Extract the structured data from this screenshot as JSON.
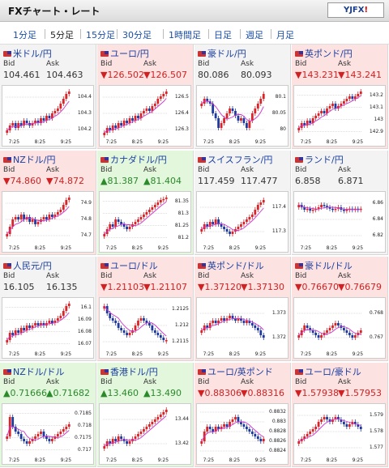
{
  "header": {
    "title": "FXチャート・レート",
    "logo_main": "YJFX",
    "logo_accent": "!"
  },
  "tabs": [
    {
      "label": "1分足",
      "selected": false
    },
    {
      "label": "5分足",
      "selected": true
    },
    {
      "label": "15分足",
      "selected": false
    },
    {
      "label": "30分足",
      "selected": false
    },
    {
      "label": "1時間足",
      "selected": false
    },
    {
      "label": "日足",
      "selected": false
    },
    {
      "label": "週足",
      "selected": false
    },
    {
      "label": "月足",
      "selected": false
    }
  ],
  "labels": {
    "bid": "Bid",
    "ask": "Ask"
  },
  "x_ticks": [
    "7:25",
    "8:25",
    "9:25"
  ],
  "colors": {
    "up_bg": "#e2f7dc",
    "down_bg": "#fde2e2",
    "flat_bg": "#f3f3f3",
    "up_text": "#2b8a2b",
    "down_text": "#d02222",
    "candle_up": "#d8252a",
    "candle_down": "#1f3a9e",
    "ma": "#cc33cc"
  },
  "pairs": [
    {
      "name": "米ドル/円",
      "dir": "flat",
      "bid": "104.461",
      "ask": "104.463",
      "y_ticks": [
        "104.4",
        "104.3",
        "104.2"
      ],
      "trend": [
        0.15,
        0.25,
        0.3,
        0.2,
        0.3,
        0.25,
        0.35,
        0.3,
        0.25,
        0.3,
        0.35,
        0.3,
        0.4,
        0.35,
        0.45,
        0.4,
        0.5,
        0.55,
        0.6,
        0.7,
        0.8,
        0.9,
        0.95
      ]
    },
    {
      "name": "ユーロ/円",
      "dir": "down",
      "bid": "▼126.502",
      "ask": "▼126.507",
      "y_ticks": [
        "126.5",
        "126.4",
        "126.3"
      ],
      "trend": [
        0.1,
        0.2,
        0.15,
        0.25,
        0.2,
        0.3,
        0.25,
        0.35,
        0.3,
        0.4,
        0.35,
        0.45,
        0.4,
        0.5,
        0.55,
        0.6,
        0.55,
        0.65,
        0.7,
        0.8,
        0.85,
        0.9,
        0.95
      ]
    },
    {
      "name": "豪ドル/円",
      "dir": "flat",
      "bid": "80.086",
      "ask": "80.093",
      "y_ticks": [
        "80.1",
        "80.05",
        "80"
      ],
      "trend": [
        0.7,
        0.8,
        0.75,
        0.7,
        0.5,
        0.4,
        0.2,
        0.3,
        0.4,
        0.5,
        0.6,
        0.55,
        0.45,
        0.35,
        0.4,
        0.3,
        0.2,
        0.35,
        0.5,
        0.6,
        0.7,
        0.8,
        0.9
      ]
    },
    {
      "name": "英ポンド/円",
      "dir": "down",
      "bid": "▼143.231",
      "ask": "▼143.241",
      "y_ticks": [
        "143.2",
        "143.1",
        "143",
        "142.9"
      ],
      "trend": [
        0.2,
        0.3,
        0.25,
        0.35,
        0.3,
        0.4,
        0.45,
        0.5,
        0.55,
        0.5,
        0.6,
        0.65,
        0.7,
        0.6,
        0.65,
        0.7,
        0.75,
        0.8,
        0.85,
        0.8,
        0.85,
        0.9,
        0.95
      ]
    },
    {
      "name": "NZドル/円",
      "dir": "down",
      "bid": "▼74.860",
      "ask": "▼74.872",
      "y_ticks": [
        "74.9",
        "74.8",
        "74.7"
      ],
      "trend": [
        0.2,
        0.35,
        0.5,
        0.55,
        0.5,
        0.6,
        0.5,
        0.55,
        0.45,
        0.5,
        0.4,
        0.45,
        0.5,
        0.55,
        0.5,
        0.6,
        0.55,
        0.6,
        0.65,
        0.7,
        0.8,
        0.9,
        0.95
      ]
    },
    {
      "name": "カナダドル/円",
      "dir": "up",
      "bid": "▲81.387",
      "ask": "▲81.404",
      "y_ticks": [
        "81.35",
        "81.3",
        "81.25",
        "81.2"
      ],
      "trend": [
        0.2,
        0.3,
        0.4,
        0.35,
        0.5,
        0.45,
        0.4,
        0.35,
        0.3,
        0.35,
        0.4,
        0.45,
        0.5,
        0.55,
        0.6,
        0.65,
        0.7,
        0.75,
        0.8,
        0.85,
        0.9,
        0.92,
        0.95
      ]
    },
    {
      "name": "スイスフラン/円",
      "dir": "flat",
      "bid": "117.459",
      "ask": "117.477",
      "y_ticks": [
        "117.4",
        "117.3"
      ],
      "trend": [
        0.3,
        0.4,
        0.35,
        0.45,
        0.4,
        0.5,
        0.4,
        0.35,
        0.3,
        0.25,
        0.2,
        0.25,
        0.3,
        0.35,
        0.4,
        0.45,
        0.5,
        0.55,
        0.6,
        0.7,
        0.8,
        0.85,
        0.9
      ]
    },
    {
      "name": "ランド/円",
      "dir": "flat",
      "bid": "6.858",
      "ask": "6.871",
      "y_ticks": [
        "6.86",
        "6.84",
        "6.82"
      ],
      "trend": [
        0.8,
        0.75,
        0.7,
        0.72,
        0.68,
        0.7,
        0.72,
        0.75,
        0.8,
        0.78,
        0.75,
        0.72,
        0.7,
        0.72,
        0.75,
        0.7,
        0.68,
        0.7,
        0.72,
        0.7,
        0.72,
        0.7,
        0.72
      ]
    },
    {
      "name": "人民元/円",
      "dir": "flat",
      "bid": "16.105",
      "ask": "16.135",
      "y_ticks": [
        "16.1",
        "16.09",
        "16.08",
        "16.07"
      ],
      "trend": [
        0.2,
        0.35,
        0.3,
        0.4,
        0.35,
        0.45,
        0.4,
        0.5,
        0.45,
        0.5,
        0.55,
        0.5,
        0.55,
        0.5,
        0.55,
        0.6,
        0.55,
        0.6,
        0.65,
        0.7,
        0.8,
        0.9,
        0.95
      ]
    },
    {
      "name": "ユーロ/ドル",
      "dir": "down",
      "bid": "▼1.21103",
      "ask": "▼1.21107",
      "y_ticks": [
        "1.2125",
        "1.212",
        "1.2115"
      ],
      "trend": [
        0.9,
        0.75,
        0.65,
        0.6,
        0.55,
        0.45,
        0.4,
        0.35,
        0.3,
        0.35,
        0.4,
        0.5,
        0.6,
        0.65,
        0.6,
        0.55,
        0.5,
        0.4,
        0.35,
        0.3,
        0.25,
        0.2,
        0.2
      ]
    },
    {
      "name": "英ポンド/ドル",
      "dir": "down",
      "bid": "▼1.37120",
      "ask": "▼1.37130",
      "y_ticks": [
        "1.373",
        "1.372"
      ],
      "trend": [
        0.4,
        0.5,
        0.45,
        0.55,
        0.6,
        0.55,
        0.6,
        0.65,
        0.6,
        0.65,
        0.7,
        0.65,
        0.6,
        0.65,
        0.6,
        0.55,
        0.6,
        0.55,
        0.5,
        0.45,
        0.4,
        0.3,
        0.25
      ]
    },
    {
      "name": "豪ドル/ドル",
      "dir": "down",
      "bid": "▼0.76670",
      "ask": "▼0.76679",
      "y_ticks": [
        "0.768",
        "0.767"
      ],
      "trend": [
        0.3,
        0.4,
        0.5,
        0.45,
        0.4,
        0.35,
        0.3,
        0.25,
        0.3,
        0.35,
        0.4,
        0.45,
        0.5,
        0.55,
        0.5,
        0.45,
        0.4,
        0.35,
        0.3,
        0.25,
        0.3,
        0.35,
        0.4
      ]
    },
    {
      "name": "NZドル/ドル",
      "dir": "up",
      "bid": "▲0.71666",
      "ask": "▲0.71682",
      "y_ticks": [
        "0.7185",
        "0.718",
        "0.7175",
        "0.717"
      ],
      "trend": [
        0.4,
        0.8,
        0.6,
        0.5,
        0.45,
        0.35,
        0.3,
        0.25,
        0.3,
        0.35,
        0.4,
        0.45,
        0.5,
        0.4,
        0.35,
        0.3,
        0.35,
        0.4,
        0.45,
        0.5,
        0.55,
        0.6,
        0.65
      ]
    },
    {
      "name": "香港ドル/円",
      "dir": "up",
      "bid": "▲13.460",
      "ask": "▲13.490",
      "y_ticks": [
        "13.44",
        "13.42"
      ],
      "trend": [
        0.2,
        0.3,
        0.25,
        0.35,
        0.3,
        0.4,
        0.35,
        0.3,
        0.25,
        0.3,
        0.35,
        0.4,
        0.45,
        0.5,
        0.55,
        0.6,
        0.65,
        0.7,
        0.75,
        0.8,
        0.85,
        0.9,
        0.95
      ]
    },
    {
      "name": "ユーロ/英ポンド",
      "dir": "down",
      "bid": "▼0.88306",
      "ask": "▼0.88316",
      "y_ticks": [
        "0.8832",
        "0.883",
        "0.8828",
        "0.8826",
        "0.8824"
      ],
      "trend": [
        0.3,
        0.5,
        0.6,
        0.55,
        0.5,
        0.6,
        0.55,
        0.6,
        0.65,
        0.6,
        0.7,
        0.75,
        0.8,
        0.7,
        0.65,
        0.6,
        0.55,
        0.5,
        0.45,
        0.4,
        0.35,
        0.3,
        0.35
      ]
    },
    {
      "name": "ユーロ/豪ドル",
      "dir": "down",
      "bid": "▼1.57938",
      "ask": "▼1.57953",
      "y_ticks": [
        "1.579",
        "1.578",
        "1.577"
      ],
      "trend": [
        0.3,
        0.35,
        0.4,
        0.45,
        0.5,
        0.55,
        0.6,
        0.7,
        0.75,
        0.8,
        0.75,
        0.7,
        0.75,
        0.8,
        0.75,
        0.7,
        0.65,
        0.6,
        0.65,
        0.7,
        0.65,
        0.6,
        0.55
      ]
    }
  ]
}
